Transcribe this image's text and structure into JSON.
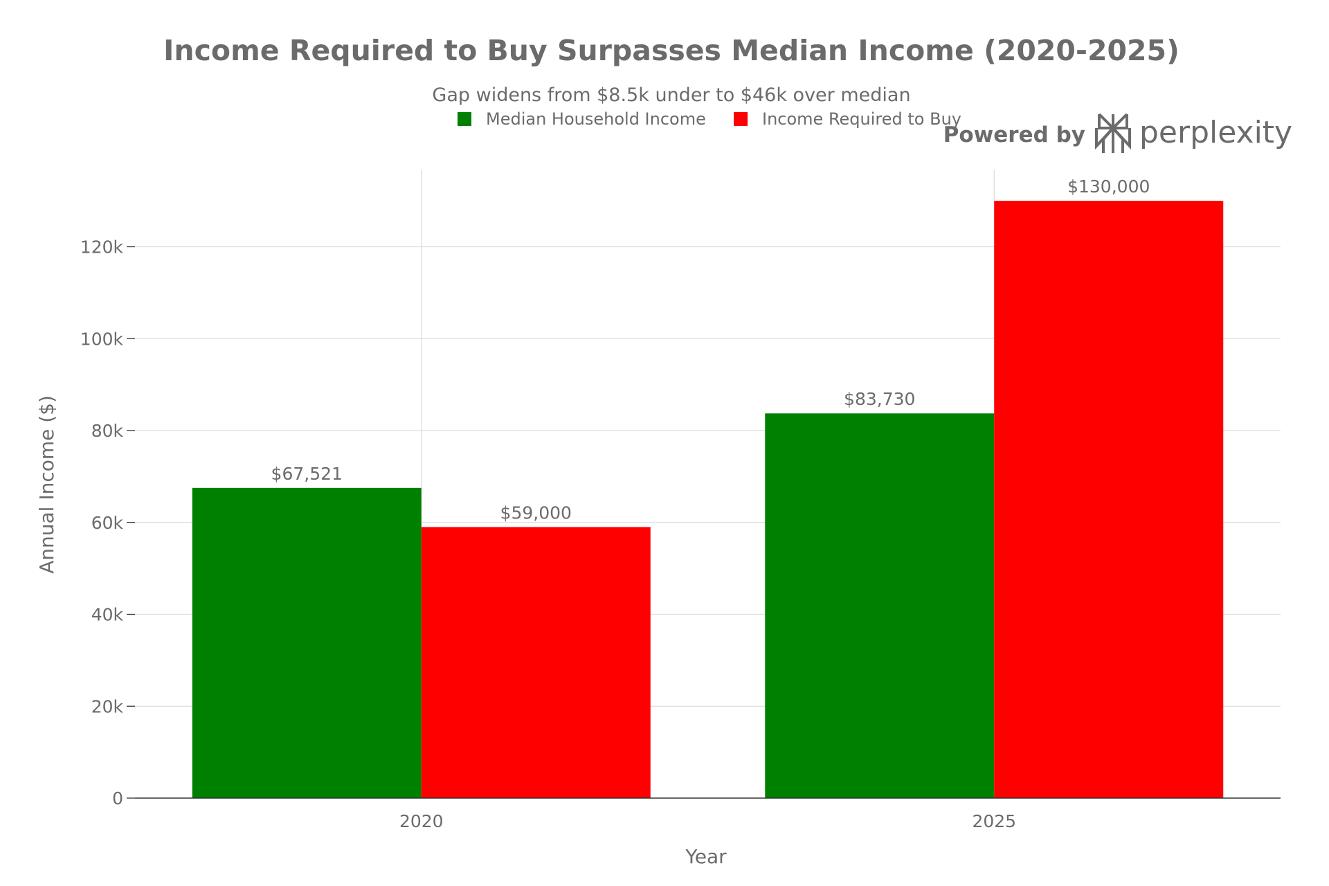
{
  "chart_data": {
    "type": "bar",
    "title": "Income Required to Buy Surpasses Median Income (2020-2025)",
    "subtitle": "Gap widens from $8.5k under to $46k over median",
    "xlabel": "Year",
    "ylabel": "Annual Income ($)",
    "categories": [
      "2020",
      "2025"
    ],
    "series": [
      {
        "name": "Median Household Income",
        "color": "#008000",
        "values": [
          67521,
          83730
        ],
        "labels": [
          "$67,521",
          "$83,730"
        ]
      },
      {
        "name": "Income Required to Buy",
        "color": "#ff0000",
        "values": [
          59000,
          130000
        ],
        "labels": [
          "$59,000",
          "$130,000"
        ]
      }
    ],
    "ylim": [
      0,
      136800
    ],
    "yticks": [
      0,
      20000,
      40000,
      60000,
      80000,
      100000,
      120000
    ],
    "ytick_labels": [
      "0",
      "20k",
      "40k",
      "60k",
      "80k",
      "100k",
      "120k"
    ],
    "grid": true,
    "legend_position": "top-center"
  },
  "branding": {
    "powered_by": "Powered by",
    "brand_name": "perplexity",
    "logo_icon": "perplexity-logo-icon"
  },
  "colors": {
    "text": "#6b6b6b",
    "grid": "#dddddd",
    "axis": "#333333"
  }
}
